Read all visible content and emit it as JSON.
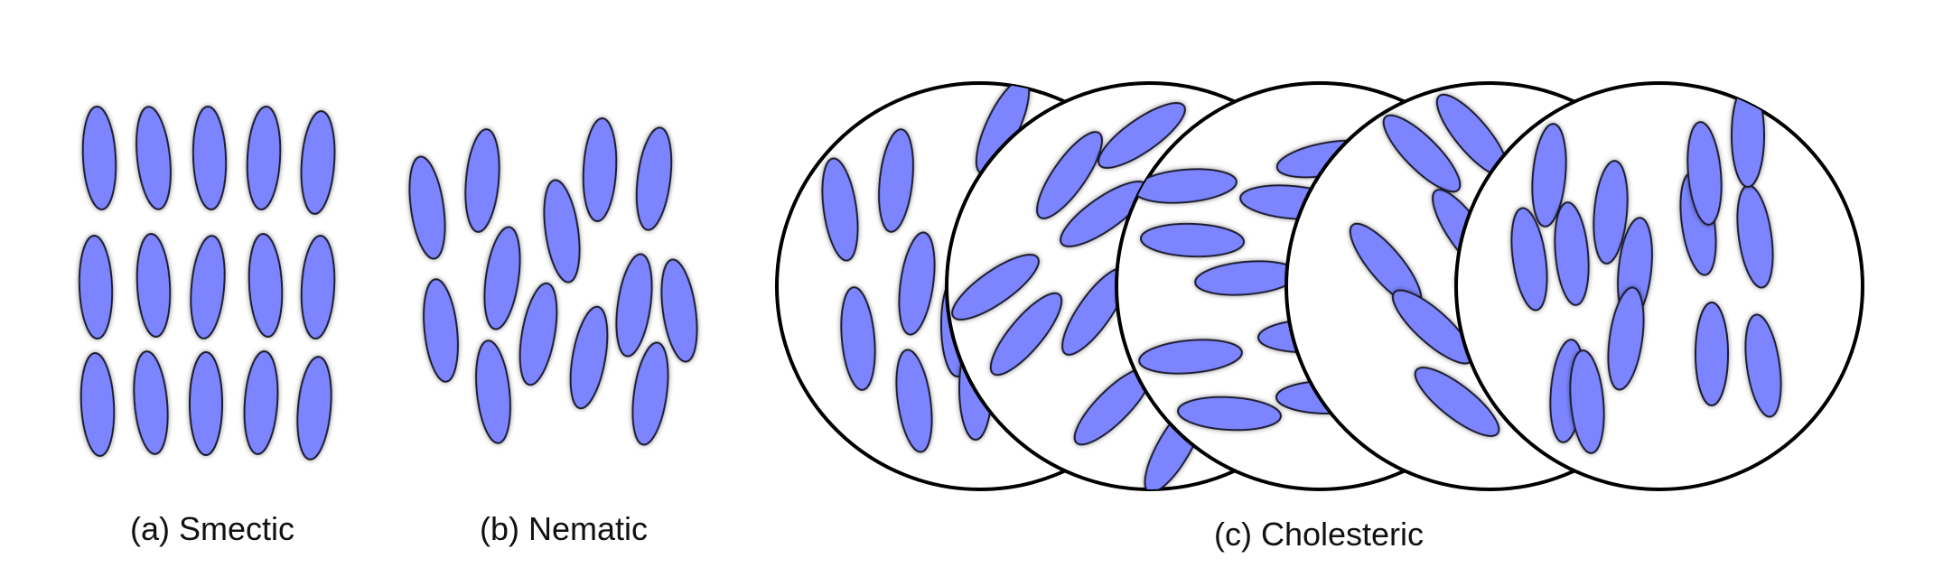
{
  "colors": {
    "molecule_fill": "#7B85FF",
    "molecule_stroke": "#1a1a2e",
    "circle_stroke": "#000000",
    "circle_fill": "#ffffff",
    "label_text": "#111111"
  },
  "panels": {
    "smectic": {
      "label": "(a) Smectic",
      "orientation": "vertical rods arranged in three ordered layers",
      "layers": 3,
      "rods_per_layer": 5
    },
    "nematic": {
      "label": "(b) Nematic",
      "orientation": "rods aligned in one direction without positional order"
    },
    "cholesteric": {
      "label": "(c) Cholesteric",
      "disks": 5,
      "orientation": "nematic layers whose alignment rotates from disk to disk"
    }
  }
}
